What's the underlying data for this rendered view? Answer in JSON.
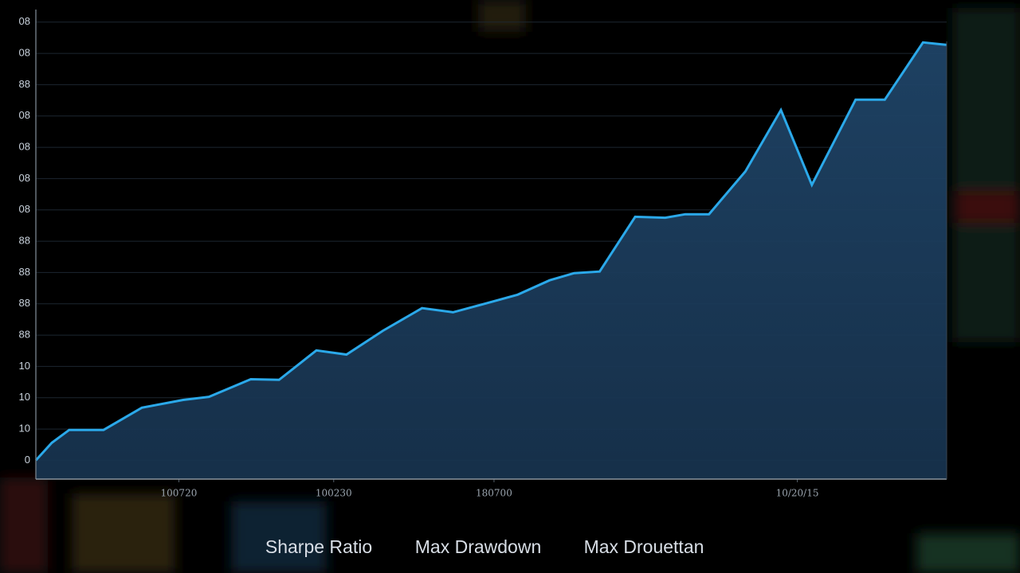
{
  "chart_data": {
    "type": "area",
    "x": [
      0,
      1.75,
      3.67,
      7.44,
      11.64,
      16.18,
      19.0,
      23.6,
      26.7,
      30.8,
      34.1,
      38.1,
      42.4,
      45.8,
      49.4,
      52.9,
      56.4,
      59.1,
      61.9,
      65.8,
      69.1,
      71.3,
      73.9,
      77.9,
      81.8,
      85.2,
      90.0,
      93.2,
      97.4,
      100
    ],
    "values": [
      0,
      0.56,
      0.97,
      0.97,
      1.68,
      1.93,
      2.03,
      2.59,
      2.57,
      3.51,
      3.38,
      4.14,
      4.86,
      4.73,
      5.01,
      5.29,
      5.75,
      5.98,
      6.03,
      7.78,
      7.75,
      7.86,
      7.86,
      9.23,
      11.19,
      8.8,
      11.52,
      11.52,
      13.35,
      13.27
    ],
    "color": "#2ba9ea",
    "xlim": [
      0,
      100
    ],
    "ylim": [
      -0.6,
      14.4
    ],
    "xticks": [
      {
        "value": 15.7,
        "label": "100720"
      },
      {
        "value": 32.7,
        "label": "100230"
      },
      {
        "value": 50.3,
        "label": "180700"
      },
      {
        "value": 83.6,
        "label": "10/20/15"
      }
    ],
    "yticks": [
      0,
      {
        "value": 1,
        "label": "10"
      },
      {
        "value": 2,
        "label": "10"
      },
      {
        "value": 3,
        "label": "10"
      },
      {
        "value": 4,
        "label": "88"
      },
      {
        "value": 5,
        "label": "88"
      },
      {
        "value": 6,
        "label": "88"
      },
      {
        "value": 7,
        "label": "88"
      },
      {
        "value": 8,
        "label": "08"
      },
      {
        "value": 9,
        "label": "08"
      },
      {
        "value": 10,
        "label": "08"
      },
      {
        "value": 11,
        "label": "08"
      },
      {
        "value": 12,
        "label": "88"
      },
      {
        "value": 13,
        "label": "08"
      },
      {
        "value": 14,
        "label": "08"
      }
    ],
    "grid": true
  },
  "stats": [
    "Sharpe Ratio",
    "Max Drawdown",
    "Max Drouettan"
  ]
}
